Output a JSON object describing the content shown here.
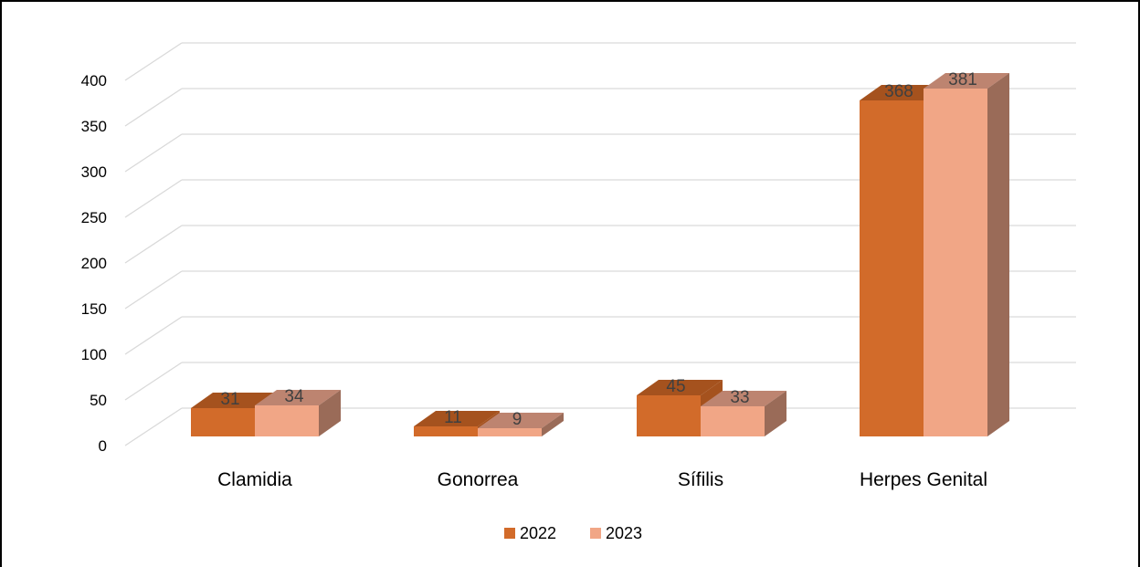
{
  "chart_data": {
    "type": "bar",
    "categories": [
      "Clamidia",
      "Gonorrea",
      "Sífilis",
      "Herpes Genital"
    ],
    "series": [
      {
        "name": "2022",
        "values": [
          31,
          11,
          45,
          368
        ],
        "color": "#D26B2A",
        "top_color": "#A5521E",
        "side_color": "#A5521E"
      },
      {
        "name": "2023",
        "values": [
          34,
          9,
          33,
          381
        ],
        "color": "#F1A686",
        "top_color": "#BD8470",
        "side_color": "#9A6B58"
      }
    ],
    "ylim": [
      0,
      400
    ],
    "yticks": [
      "0",
      "50",
      "100",
      "150",
      "200",
      "250",
      "300",
      "350",
      "400"
    ],
    "grid": true,
    "legend": "bottom",
    "three_d": true
  }
}
